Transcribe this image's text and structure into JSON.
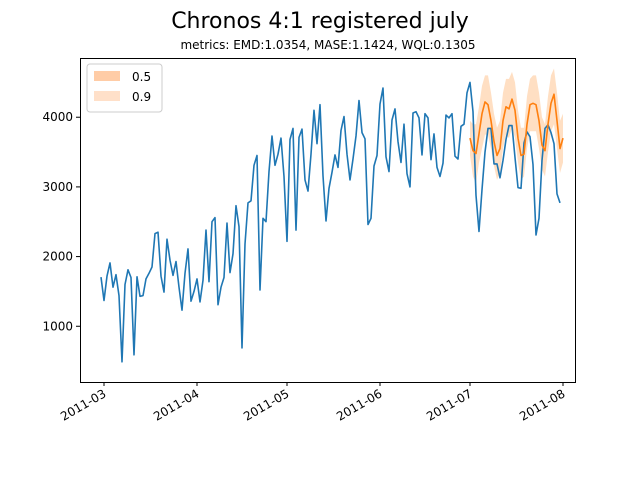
{
  "chart_data": {
    "type": "line",
    "title": "Chronos 4:1 registered july",
    "subtitle": "metrics: EMD:1.0354, MASE:1.1424, WQL:0.1305",
    "xlabel": "",
    "ylabel": "",
    "x_range": [
      "2011-02-21",
      "2011-08-05"
    ],
    "ylim": [
      200,
      4850
    ],
    "xticks": [
      {
        "date": "2011-03-01",
        "label": "2011-03"
      },
      {
        "date": "2011-04-01",
        "label": "2011-04"
      },
      {
        "date": "2011-05-01",
        "label": "2011-05"
      },
      {
        "date": "2011-06-01",
        "label": "2011-06"
      },
      {
        "date": "2011-07-01",
        "label": "2011-07"
      },
      {
        "date": "2011-08-01",
        "label": "2011-08"
      }
    ],
    "yticks": [
      {
        "value": 1000,
        "label": "1000"
      },
      {
        "value": 2000,
        "label": "2000"
      },
      {
        "value": 3000,
        "label": "3000"
      },
      {
        "value": 4000,
        "label": "4000"
      }
    ],
    "grid": false,
    "legend": {
      "placement": "top-left",
      "entries": [
        {
          "label": "0.5",
          "color": "#ffbb88",
          "opacity": 0.75
        },
        {
          "label": "0.9",
          "color": "#ffbb88",
          "opacity": 0.45
        }
      ]
    },
    "colors": {
      "actual": "#1f77b4",
      "forecast": "#ff7f0e",
      "band": "#ff7f0e"
    },
    "series": [
      {
        "start_date": "2011-02-28",
        "values": [
          1705,
          1370,
          1720,
          1910,
          1560,
          1740,
          1440,
          490,
          1600,
          1810,
          1700,
          590,
          1710,
          1430,
          1440,
          1680,
          1760,
          1850,
          2330,
          2350,
          1720,
          1490,
          2250,
          1950,
          1730,
          1930,
          1560,
          1230,
          1760,
          2110,
          1360,
          1500,
          1680,
          1350,
          1660,
          2380,
          1640,
          2500,
          2560,
          1310,
          1560,
          1700,
          2480,
          1770,
          2040,
          2730,
          2430,
          690,
          2180,
          2770,
          2800,
          3310,
          3450,
          1520,
          2550,
          2500,
          3220,
          3730,
          3310,
          3470,
          3700,
          3150,
          2220,
          3680,
          3840,
          2380,
          3710,
          3830,
          3100,
          2940,
          3470,
          4100,
          3620,
          4180,
          3160,
          2510,
          2980,
          3210,
          3460,
          3280,
          3810,
          4010,
          3470,
          3100,
          3400,
          3730,
          4240,
          3780,
          3690,
          2460,
          2550,
          3300,
          3450,
          4190,
          4420,
          3430,
          3220,
          3960,
          4120,
          3650,
          3350,
          3900,
          3190,
          3000,
          4060,
          4080,
          3990,
          3460,
          4050,
          3990,
          3390,
          3760,
          3280,
          3150,
          3340,
          4030,
          3990,
          4050,
          3440,
          3400,
          3870,
          3900,
          4350,
          4500,
          4080,
          2880,
          2360,
          2960,
          3500,
          3840,
          3840,
          3330,
          3330,
          3130,
          3380,
          3680,
          3880,
          3880,
          3420,
          2990,
          2980,
          3630,
          3790,
          3720,
          3320,
          2310,
          2550,
          3380,
          3840,
          3890,
          3780,
          3620,
          2900,
          2770
        ]
      }
    ],
    "forecast": {
      "start_date": "2011-07-01",
      "median": [
        3700,
        3520,
        3480,
        3760,
        4050,
        4220,
        4180,
        3950,
        3650,
        3450,
        3550,
        3950,
        4150,
        4120,
        4260,
        4100,
        3700,
        3450,
        3470,
        3900,
        4180,
        4200,
        4180,
        3950,
        3600,
        3520,
        3900,
        4200,
        4330,
        3950,
        3550,
        3700
      ],
      "q_low": [
        3450,
        3150,
        3050,
        3350,
        3550,
        3750,
        3750,
        3550,
        3300,
        3100,
        3200,
        3550,
        3750,
        3700,
        3850,
        3700,
        3350,
        3100,
        3150,
        3550,
        3800,
        3800,
        3800,
        3550,
        3250,
        3150,
        3500,
        3800,
        3900,
        3550,
        3200,
        3350
      ],
      "q_high": [
        3950,
        3900,
        3900,
        4150,
        4450,
        4600,
        4600,
        4350,
        4050,
        3850,
        3950,
        4350,
        4550,
        4550,
        4650,
        4500,
        4100,
        3850,
        3850,
        4300,
        4550,
        4600,
        4600,
        4350,
        4000,
        3900,
        4300,
        4600,
        4700,
        4350,
        3950,
        4050
      ]
    }
  }
}
